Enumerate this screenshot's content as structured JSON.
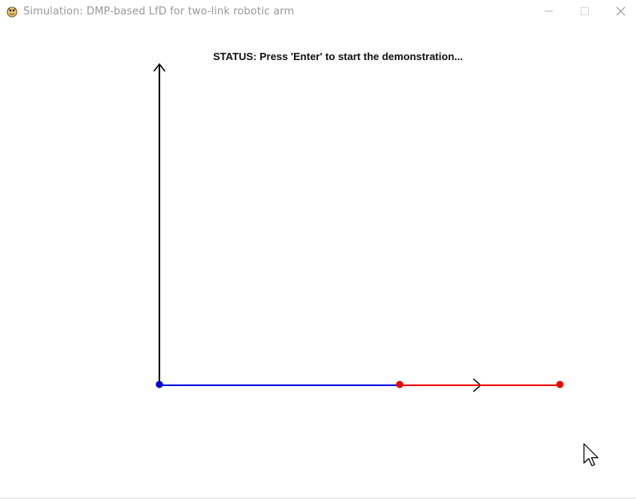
{
  "window": {
    "title": "Simulation: DMP-based LfD for two-link robotic arm",
    "app_icon": "pygame-snake-icon",
    "controls": {
      "minimize": "minimize-icon",
      "maximize": "maximize-icon",
      "close": "close-icon"
    }
  },
  "canvas": {
    "status": "STATUS: Press 'Enter' to start the demonstration...",
    "colors": {
      "axis": "#000000",
      "link1": "#0000dd",
      "link2": "#ee0000",
      "base_joint": "#0000dd",
      "elbow_joint": "#ee0000",
      "end_effector": "#ee0000"
    }
  }
}
